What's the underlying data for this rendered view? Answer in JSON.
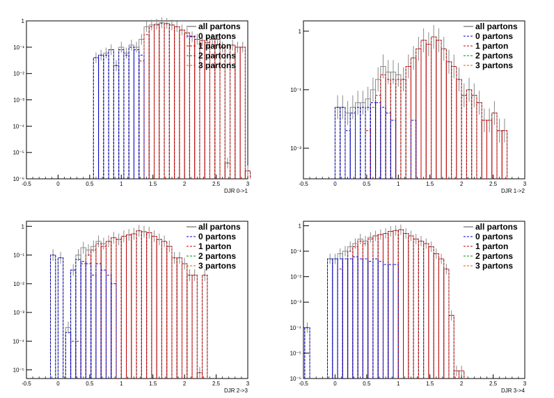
{
  "legend": [
    {
      "label": "all partons",
      "color": "#888888",
      "style": "solid"
    },
    {
      "label": "0 partons",
      "color": "#0000cc",
      "style": "dashed"
    },
    {
      "label": "1 parton",
      "color": "#cc0000",
      "style": "dashed"
    },
    {
      "label": "2 partons",
      "color": "#008800",
      "style": "dashed"
    },
    {
      "label": "3 partons",
      "color": "#cc6600",
      "style": "dashed"
    }
  ],
  "chart_data": [
    {
      "type": "histogram",
      "xlabel": "DJR 0->1",
      "xlim": [
        -0.5,
        3
      ],
      "ylim": [
        1e-06,
        1
      ],
      "yscale": "log",
      "xticks": [
        "-0.5",
        "0",
        "0.5",
        "1",
        "1.5",
        "2",
        "2.5",
        "3"
      ],
      "yticks": [
        "1",
        "10⁻¹",
        "10⁻²",
        "10⁻³",
        "10⁻⁴",
        "10⁻⁵",
        "10⁻⁶"
      ],
      "all": [
        [
          0.56,
          0.04
        ],
        [
          0.64,
          0.05
        ],
        [
          0.72,
          0.06
        ],
        [
          0.8,
          0.08
        ],
        [
          0.88,
          0.02
        ],
        [
          0.96,
          0.1
        ],
        [
          1.04,
          0.06
        ],
        [
          1.12,
          0.12
        ],
        [
          1.2,
          0.1
        ],
        [
          1.28,
          0.2
        ],
        [
          1.36,
          0.6
        ],
        [
          1.44,
          0.7
        ],
        [
          1.52,
          0.75
        ],
        [
          1.6,
          0.85
        ],
        [
          1.68,
          0.8
        ],
        [
          1.76,
          0.7
        ],
        [
          1.84,
          0.6
        ],
        [
          1.92,
          0.45
        ],
        [
          2.0,
          0.35
        ],
        [
          2.08,
          0.25
        ],
        [
          2.16,
          0.2
        ],
        [
          2.24,
          0.18
        ],
        [
          2.32,
          0.15
        ],
        [
          2.4,
          0.2
        ],
        [
          2.48,
          0.2
        ],
        [
          2.56,
          0.1
        ],
        [
          2.64,
          4e-06
        ],
        [
          2.72,
          0.12
        ],
        [
          2.8,
          0.1
        ],
        [
          2.88,
          0.1
        ],
        [
          2.96,
          2e-06
        ]
      ],
      "p0": [
        [
          0.56,
          0.04
        ],
        [
          0.64,
          0.05
        ],
        [
          0.72,
          0.05
        ],
        [
          0.8,
          0.08
        ],
        [
          0.88,
          0.02
        ],
        [
          0.96,
          0.08
        ],
        [
          1.04,
          0.05
        ],
        [
          1.12,
          0.1
        ],
        [
          1.2,
          0.08
        ],
        [
          1.28,
          0.05
        ]
      ],
      "p1": [
        [
          1.28,
          0.03
        ],
        [
          1.36,
          0.3
        ],
        [
          1.44,
          0.6
        ],
        [
          1.52,
          0.7
        ],
        [
          1.6,
          0.8
        ],
        [
          1.68,
          0.78
        ],
        [
          1.76,
          0.7
        ],
        [
          1.84,
          0.6
        ],
        [
          1.92,
          0.45
        ],
        [
          2.0,
          0.35
        ],
        [
          2.08,
          0.25
        ],
        [
          2.16,
          0.2
        ],
        [
          2.24,
          0.18
        ],
        [
          2.32,
          0.15
        ],
        [
          2.4,
          0.2
        ],
        [
          2.48,
          0.2
        ],
        [
          2.56,
          0.1
        ],
        [
          2.64,
          4e-06
        ],
        [
          2.72,
          0.12
        ],
        [
          2.8,
          0.1
        ],
        [
          2.88,
          0.1
        ],
        [
          2.96,
          2e-06
        ]
      ]
    },
    {
      "type": "histogram",
      "xlabel": "DJR 1->2",
      "xlim": [
        -0.5,
        3
      ],
      "ylim": [
        0.003,
        1.5
      ],
      "yscale": "log",
      "xticks": [
        "-0.5",
        "0",
        "0.5",
        "1",
        "1.5",
        "2",
        "2.5",
        "3"
      ],
      "yticks": [
        "1",
        "10⁻¹",
        "10⁻²"
      ],
      "all": [
        [
          0.0,
          0.05
        ],
        [
          0.08,
          0.05
        ],
        [
          0.16,
          0.04
        ],
        [
          0.24,
          0.05
        ],
        [
          0.32,
          0.06
        ],
        [
          0.4,
          0.06
        ],
        [
          0.48,
          0.07
        ],
        [
          0.56,
          0.1
        ],
        [
          0.64,
          0.15
        ],
        [
          0.72,
          0.25
        ],
        [
          0.8,
          0.2
        ],
        [
          0.88,
          0.2
        ],
        [
          0.96,
          0.18
        ],
        [
          1.04,
          0.15
        ],
        [
          1.12,
          0.25
        ],
        [
          1.2,
          0.35
        ],
        [
          1.28,
          0.5
        ],
        [
          1.36,
          0.7
        ],
        [
          1.44,
          0.6
        ],
        [
          1.52,
          0.8
        ],
        [
          1.6,
          0.7
        ],
        [
          1.68,
          0.5
        ],
        [
          1.76,
          0.3
        ],
        [
          1.84,
          0.25
        ],
        [
          1.92,
          0.15
        ],
        [
          2.0,
          0.08
        ],
        [
          2.08,
          0.1
        ],
        [
          2.16,
          0.08
        ],
        [
          2.24,
          0.06
        ],
        [
          2.32,
          0.03
        ],
        [
          2.4,
          0.03
        ],
        [
          2.48,
          0.04
        ],
        [
          2.56,
          0.02
        ],
        [
          2.64,
          0.02
        ]
      ],
      "p0": [
        [
          0.0,
          0.05
        ],
        [
          0.08,
          0.05
        ],
        [
          0.16,
          0.02
        ],
        [
          0.24,
          0.04
        ],
        [
          0.32,
          0.05
        ],
        [
          0.4,
          0.05
        ],
        [
          0.48,
          0.05
        ],
        [
          0.56,
          0.06
        ],
        [
          0.64,
          0.06
        ],
        [
          0.72,
          0.05
        ],
        [
          0.8,
          0.04
        ],
        [
          0.88,
          0.03
        ],
        [
          1.2,
          0.03
        ]
      ],
      "p1": [
        [
          0.48,
          0.02
        ],
        [
          0.56,
          0.05
        ],
        [
          0.64,
          0.08
        ],
        [
          0.72,
          0.18
        ],
        [
          0.8,
          0.15
        ],
        [
          0.88,
          0.15
        ],
        [
          0.96,
          0.15
        ],
        [
          1.04,
          0.15
        ],
        [
          1.12,
          0.25
        ],
        [
          1.2,
          0.35
        ],
        [
          1.28,
          0.5
        ],
        [
          1.36,
          0.7
        ],
        [
          1.44,
          0.6
        ],
        [
          1.52,
          0.8
        ],
        [
          1.6,
          0.7
        ],
        [
          1.68,
          0.5
        ],
        [
          1.76,
          0.3
        ],
        [
          1.84,
          0.25
        ],
        [
          1.92,
          0.15
        ],
        [
          2.0,
          0.08
        ],
        [
          2.08,
          0.1
        ],
        [
          2.16,
          0.08
        ],
        [
          2.24,
          0.06
        ],
        [
          2.32,
          0.03
        ],
        [
          2.4,
          0.03
        ],
        [
          2.48,
          0.04
        ],
        [
          2.56,
          0.02
        ],
        [
          2.64,
          0.02
        ]
      ]
    },
    {
      "type": "histogram",
      "xlabel": "DJR 2->3",
      "xlim": [
        -0.5,
        3
      ],
      "ylim": [
        5e-06,
        1.5
      ],
      "yscale": "log",
      "xticks": [
        "-0.5",
        "0",
        "0.5",
        "1",
        "1.5",
        "2",
        "2.5",
        "3"
      ],
      "yticks": [
        "1",
        "10⁻¹",
        "10⁻²",
        "10⁻³",
        "10⁻⁴",
        "10⁻⁵"
      ],
      "all": [
        [
          -0.12,
          0.1
        ],
        [
          0.0,
          0.08
        ],
        [
          0.12,
          0.0003
        ],
        [
          0.2,
          0.03
        ],
        [
          0.28,
          0.1
        ],
        [
          0.36,
          0.18
        ],
        [
          0.44,
          0.15
        ],
        [
          0.52,
          0.2
        ],
        [
          0.6,
          0.3
        ],
        [
          0.68,
          0.25
        ],
        [
          0.76,
          0.3
        ],
        [
          0.84,
          0.4
        ],
        [
          0.92,
          0.35
        ],
        [
          1.0,
          0.45
        ],
        [
          1.08,
          0.5
        ],
        [
          1.16,
          0.55
        ],
        [
          1.24,
          0.7
        ],
        [
          1.32,
          0.65
        ],
        [
          1.4,
          0.6
        ],
        [
          1.48,
          0.45
        ],
        [
          1.56,
          0.35
        ],
        [
          1.64,
          0.3
        ],
        [
          1.72,
          0.2
        ],
        [
          1.8,
          0.08
        ],
        [
          1.88,
          0.08
        ],
        [
          1.96,
          0.05
        ],
        [
          2.04,
          0.02
        ],
        [
          2.12,
          0.02
        ],
        [
          2.2,
          8e-06
        ],
        [
          2.28,
          0.02
        ]
      ],
      "p0": [
        [
          -0.12,
          0.1
        ],
        [
          0.0,
          0.08
        ],
        [
          0.12,
          0.0002
        ],
        [
          0.2,
          0.03
        ],
        [
          0.28,
          0.07
        ],
        [
          0.36,
          0.06
        ],
        [
          0.44,
          0.05
        ],
        [
          0.52,
          0.02
        ],
        [
          0.6,
          0.05
        ],
        [
          0.68,
          0.03
        ],
        [
          0.76,
          0.02
        ],
        [
          0.84,
          0.01
        ]
      ],
      "p1": [
        [
          0.2,
          0.0001
        ],
        [
          0.28,
          0.0001
        ],
        [
          0.36,
          0.05
        ],
        [
          0.44,
          0.1
        ],
        [
          0.52,
          0.15
        ],
        [
          0.6,
          0.25
        ],
        [
          0.68,
          0.2
        ],
        [
          0.76,
          0.3
        ],
        [
          0.84,
          0.4
        ],
        [
          0.92,
          0.35
        ],
        [
          1.0,
          0.45
        ],
        [
          1.08,
          0.5
        ],
        [
          1.16,
          0.55
        ],
        [
          1.24,
          0.7
        ],
        [
          1.32,
          0.65
        ],
        [
          1.4,
          0.6
        ],
        [
          1.48,
          0.45
        ],
        [
          1.56,
          0.35
        ],
        [
          1.64,
          0.3
        ],
        [
          1.72,
          0.2
        ],
        [
          1.8,
          0.08
        ],
        [
          1.88,
          0.08
        ],
        [
          1.96,
          0.05
        ],
        [
          2.04,
          0.02
        ],
        [
          2.12,
          0.02
        ],
        [
          2.2,
          8e-06
        ],
        [
          2.28,
          0.02
        ]
      ]
    },
    {
      "type": "histogram",
      "xlabel": "DJR 3->4",
      "xlim": [
        -0.5,
        3
      ],
      "ylim": [
        1e-06,
        1.5
      ],
      "yscale": "log",
      "xticks": [
        "-0.5",
        "0",
        "0.5",
        "1",
        "1.5",
        "2",
        "2.5",
        "3"
      ],
      "yticks": [
        "1",
        "10⁻¹",
        "10⁻²",
        "10⁻³",
        "10⁻⁴",
        "10⁻⁵",
        "10⁻⁶"
      ],
      "all": [
        [
          -0.48,
          0.0001
        ],
        [
          -0.12,
          0.05
        ],
        [
          -0.04,
          0.05
        ],
        [
          0.04,
          0.08
        ],
        [
          0.12,
          0.1
        ],
        [
          0.2,
          0.15
        ],
        [
          0.28,
          0.2
        ],
        [
          0.36,
          0.3
        ],
        [
          0.44,
          0.25
        ],
        [
          0.52,
          0.35
        ],
        [
          0.6,
          0.4
        ],
        [
          0.68,
          0.45
        ],
        [
          0.76,
          0.5
        ],
        [
          0.84,
          0.6
        ],
        [
          0.92,
          0.65
        ],
        [
          1.0,
          0.7
        ],
        [
          1.08,
          0.5
        ],
        [
          1.16,
          0.4
        ],
        [
          1.24,
          0.3
        ],
        [
          1.32,
          0.25
        ],
        [
          1.4,
          0.2
        ],
        [
          1.48,
          0.15
        ],
        [
          1.56,
          0.08
        ],
        [
          1.64,
          0.05
        ],
        [
          1.72,
          0.02
        ],
        [
          1.8,
          0.0003
        ],
        [
          1.88,
          2e-06
        ],
        [
          1.96,
          2e-06
        ]
      ],
      "p0": [
        [
          -0.48,
          0.0001
        ],
        [
          -0.12,
          0.05
        ],
        [
          -0.04,
          0.05
        ],
        [
          0.04,
          0.05
        ],
        [
          0.12,
          0.05
        ],
        [
          0.2,
          0.05
        ],
        [
          0.28,
          0.06
        ],
        [
          0.36,
          0.05
        ],
        [
          0.44,
          0.05
        ],
        [
          0.52,
          0.04
        ],
        [
          0.6,
          0.05
        ],
        [
          0.68,
          0.04
        ],
        [
          0.76,
          0.03
        ],
        [
          0.84,
          0.03
        ],
        [
          0.92,
          0.03
        ]
      ],
      "p1": [
        [
          0.04,
          0.02
        ],
        [
          0.12,
          0.05
        ],
        [
          0.2,
          0.1
        ],
        [
          0.28,
          0.15
        ],
        [
          0.36,
          0.25
        ],
        [
          0.44,
          0.2
        ],
        [
          0.52,
          0.3
        ],
        [
          0.6,
          0.4
        ],
        [
          0.68,
          0.45
        ],
        [
          0.76,
          0.5
        ],
        [
          0.84,
          0.6
        ],
        [
          0.92,
          0.65
        ],
        [
          1.0,
          0.7
        ],
        [
          1.08,
          0.5
        ],
        [
          1.16,
          0.4
        ],
        [
          1.24,
          0.3
        ],
        [
          1.32,
          0.25
        ],
        [
          1.4,
          0.2
        ],
        [
          1.48,
          0.15
        ],
        [
          1.56,
          0.08
        ],
        [
          1.64,
          0.05
        ],
        [
          1.72,
          0.02
        ],
        [
          1.8,
          0.0003
        ],
        [
          1.88,
          2e-06
        ],
        [
          1.96,
          2e-06
        ]
      ]
    }
  ]
}
